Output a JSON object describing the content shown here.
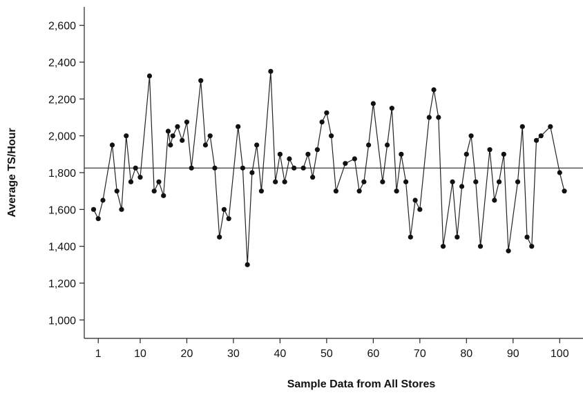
{
  "chart_data": {
    "type": "line",
    "title": "",
    "xlabel": "Sample Data from All Stores",
    "ylabel": "Average TS/Hour",
    "xlim": [
      -2,
      105
    ],
    "ylim": [
      900,
      2700
    ],
    "x_ticks": [
      1,
      10,
      20,
      30,
      40,
      50,
      60,
      70,
      80,
      90,
      100
    ],
    "x_tick_labels": [
      "1",
      "10",
      "20",
      "30",
      "40",
      "50",
      "60",
      "70",
      "80",
      "90",
      "100"
    ],
    "y_ticks": [
      1000,
      1200,
      1400,
      1600,
      1800,
      2000,
      2200,
      2400,
      2600
    ],
    "y_tick_labels": [
      "1,000",
      "1,200",
      "1,400",
      "1,600",
      "1,800",
      "2,000",
      "2,200",
      "2,400",
      "2,600"
    ],
    "grid": false,
    "legend": "none",
    "reference_line": {
      "y": 1825
    },
    "series": [
      {
        "x": [
          0,
          1,
          2,
          4,
          5,
          6,
          7,
          8,
          9,
          10,
          12,
          13,
          14,
          15,
          16,
          16.5,
          17,
          18,
          19,
          20,
          21,
          23,
          24,
          25,
          26,
          27,
          28,
          29,
          31,
          32,
          33,
          34,
          35,
          36,
          38,
          39,
          40,
          41,
          42,
          43,
          45,
          46,
          47,
          48,
          49,
          50,
          51,
          52,
          54,
          56,
          57,
          58,
          59,
          60,
          62,
          63,
          64,
          65,
          66,
          67,
          68,
          69,
          70,
          72,
          73,
          74,
          75,
          77,
          78,
          79,
          80,
          81,
          82,
          83,
          85,
          86,
          87,
          88,
          89,
          91,
          92,
          93,
          94,
          95,
          96,
          98,
          100,
          101
        ],
        "values": [
          1600,
          1550,
          1650,
          1950,
          1700,
          1600,
          2000,
          1750,
          1825,
          1775,
          2325,
          1700,
          1750,
          1675,
          2025,
          1950,
          2000,
          2050,
          1975,
          2075,
          1825,
          2300,
          1950,
          2000,
          1825,
          1450,
          1600,
          1550,
          2050,
          1825,
          1300,
          1800,
          1950,
          1700,
          2350,
          1750,
          1900,
          1750,
          1875,
          1825,
          1825,
          1900,
          1775,
          1925,
          2075,
          2125,
          2000,
          1700,
          1850,
          1875,
          1700,
          1750,
          1950,
          2175,
          1750,
          1950,
          2150,
          1700,
          1900,
          1750,
          1450,
          1650,
          1600,
          2100,
          2250,
          2100,
          1400,
          1750,
          1450,
          1725,
          1900,
          2000,
          1750,
          1400,
          1925,
          1650,
          1750,
          1900,
          1375,
          1750,
          2050,
          1450,
          1400,
          1975,
          2000,
          2050,
          1800,
          1700
        ]
      }
    ]
  }
}
